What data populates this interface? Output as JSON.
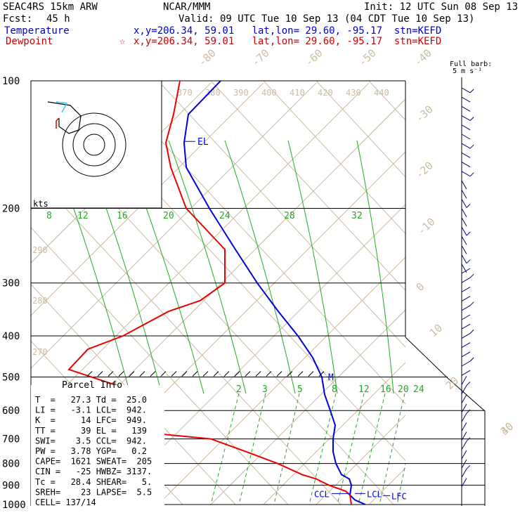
{
  "header": {
    "model": "SEAC4RS 15km ARW",
    "org": "NCAR/MMM",
    "init": "Init: 12 UTC Sun 08 Sep 13",
    "fcst_label": "Fcst:",
    "fcst_value": "45 h",
    "valid": "Valid: 09 UTC Tue 10 Sep 13 (04 CDT Tue 10 Sep 13)",
    "temperature_label": "Temperature",
    "dewpoint_label": "Dewpoint",
    "temp_info": "x,y=206.34, 59.01   lat,lon= 29.60, -95.17  stn=KEFD",
    "dew_info": "x,y=206.34, 59.01   lat,lon= 29.60, -95.17  stn=KEFD",
    "dew_star": "☆"
  },
  "colors": {
    "temperature": "#0000dd",
    "dewpoint": "#ee0000",
    "isotherm": "#cbbba0",
    "mixing_ratio": "#22aa22",
    "wind": "#000080"
  },
  "chart_data": {
    "type": "line",
    "y_scale": "log-pressure",
    "ylim": [
      1000,
      100
    ],
    "pressure_labels": [
      "100",
      "200",
      "300",
      "400",
      "500",
      "600",
      "700",
      "800",
      "900",
      "1000"
    ],
    "skew_temp_labels": [
      "-80",
      "-70",
      "-60",
      "-50",
      "-40",
      "-30",
      "-20",
      "-10",
      "0",
      "10",
      "20",
      "30",
      "40"
    ],
    "theta_labels_top": [
      "370",
      "380",
      "390",
      "400",
      "410",
      "420",
      "430",
      "440"
    ],
    "theta_labels_left": [
      "290",
      "280",
      "270"
    ],
    "mixing_ratio_labels_upper": [
      "8",
      "12",
      "16",
      "20",
      "24",
      "28",
      "32"
    ],
    "mixing_ratio_labels_lower": [
      "2",
      "3",
      "5",
      "8",
      "12",
      "16",
      "20",
      "24"
    ],
    "hodograph_label": "kts",
    "barb_label": "Full barb:\n5 m s⁻¹",
    "series": [
      {
        "name": "Temperature",
        "pressure": [
          100,
          120,
          140,
          160,
          200,
          250,
          300,
          350,
          400,
          450,
          500,
          550,
          600,
          650,
          700,
          750,
          800,
          850,
          870,
          900,
          950,
          975,
          1000
        ],
        "x": [
          314,
          268,
          262,
          265,
          298,
          335,
          366,
          396,
          424,
          445,
          458,
          462,
          470,
          477,
          474,
          474,
          478,
          486,
          497,
          500,
          498,
          505,
          520
        ]
      },
      {
        "name": "Dewpoint",
        "pressure": [
          100,
          120,
          140,
          160,
          200,
          250,
          300,
          330,
          350,
          400,
          430,
          480,
          550,
          600,
          650,
          700,
          750,
          800,
          850,
          870,
          900,
          930,
          950,
          1000
        ],
        "x": [
          256,
          247,
          236,
          243,
          265,
          320,
          320,
          285,
          240,
          175,
          125,
          98,
          205,
          190,
          98,
          300,
          350,
          395,
          430,
          450,
          468,
          492,
          498,
          500
        ]
      }
    ],
    "annotations": [
      "EL",
      "M",
      "CCL",
      "LCL",
      "LFC"
    ]
  },
  "parcel_info": {
    "title": "Parcel Info",
    "rows": [
      "T  =   27.3 Td =  25.0",
      "LI =   -3.1 LCL=  942.",
      "K  =     14 LFC=  949.",
      "TT =     39 EL =   139",
      "SWI=    3.5 CCL=  942.",
      "PW =   3.78 YGP=   0.2",
      "CAPE=  1621 SWEAT=  205",
      "CIN =   -25 HWBZ= 3137.",
      "Tc =   28.4 SHEAR=   5.",
      "SREH=    23 LAPSE=  5.5",
      "CELL= 137/14"
    ]
  }
}
